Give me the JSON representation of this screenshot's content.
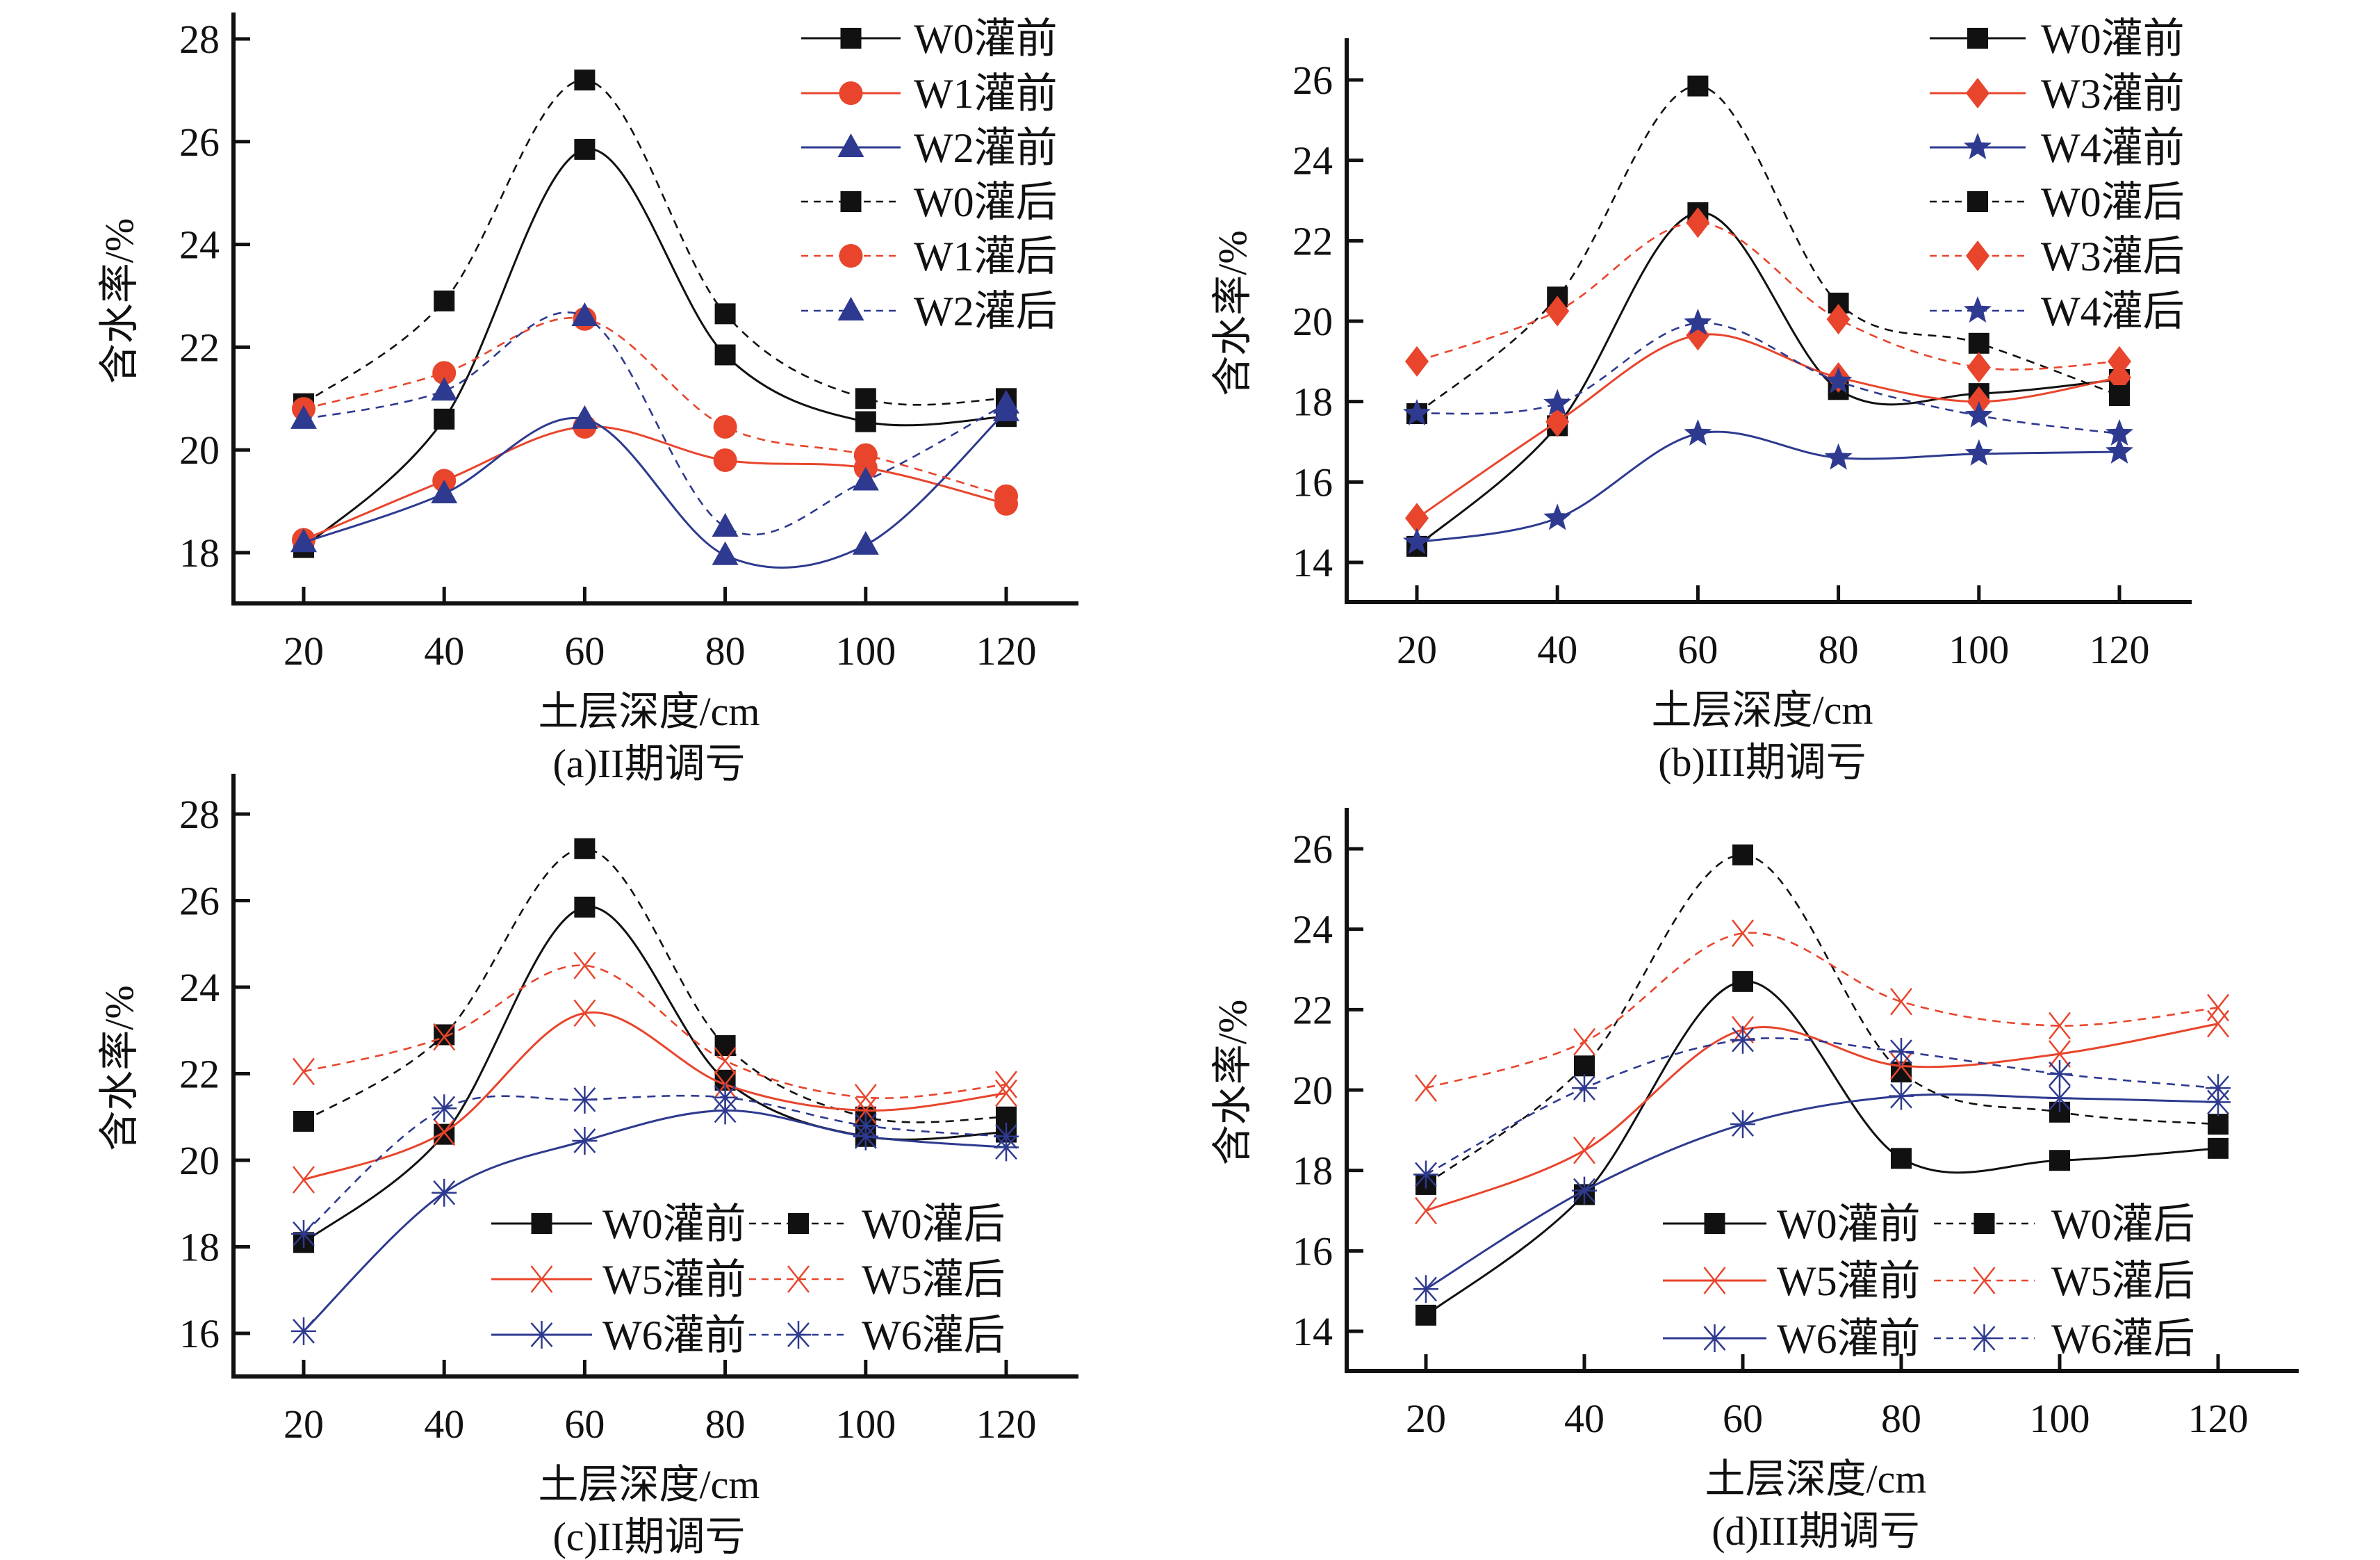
{
  "figure": {
    "colors": {
      "black": "#111111",
      "red": "#e8452c",
      "blue": "#2e3a8f"
    }
  },
  "chart_data": [
    {
      "id": "a",
      "type": "line",
      "caption": "(a)II期调亏",
      "xlabel": "土层深度/cm",
      "ylabel": "含水率/%",
      "x": [
        20,
        40,
        60,
        80,
        100,
        120
      ],
      "x_ticks": [
        "20",
        "40",
        "60",
        "80",
        "100",
        "120"
      ],
      "y_ticks": [
        "18",
        "20",
        "22",
        "24",
        "26",
        "28"
      ],
      "ylim": [
        17,
        28.5
      ],
      "legend_placement": "top-right",
      "series": [
        {
          "name": "W0灌前",
          "color": "black",
          "dash": "solid",
          "marker": "square",
          "values": [
            18.1,
            20.6,
            25.85,
            21.85,
            20.55,
            20.65
          ]
        },
        {
          "name": "W1灌前",
          "color": "red",
          "dash": "solid",
          "marker": "circle",
          "values": [
            18.25,
            19.4,
            20.45,
            19.8,
            19.65,
            18.95
          ]
        },
        {
          "name": "W2灌前",
          "color": "blue",
          "dash": "solid",
          "marker": "triangle",
          "values": [
            18.2,
            19.15,
            20.6,
            17.95,
            18.15,
            20.75
          ]
        },
        {
          "name": "W0灌后",
          "color": "black",
          "dash": "dashed",
          "marker": "square",
          "values": [
            20.9,
            22.9,
            27.2,
            22.65,
            21.0,
            21.0
          ]
        },
        {
          "name": "W1灌后",
          "color": "red",
          "dash": "dashed",
          "marker": "circle",
          "values": [
            20.8,
            21.5,
            22.55,
            20.45,
            19.9,
            19.1
          ]
        },
        {
          "name": "W2灌后",
          "color": "blue",
          "dash": "dashed",
          "marker": "triangle",
          "values": [
            20.6,
            21.15,
            22.6,
            18.5,
            19.4,
            20.9
          ]
        }
      ]
    },
    {
      "id": "b",
      "type": "line",
      "caption": "(b)III期调亏",
      "xlabel": "土层深度/cm",
      "ylabel": "含水率/%",
      "x": [
        20,
        40,
        60,
        80,
        100,
        120
      ],
      "x_ticks": [
        "20",
        "40",
        "60",
        "80",
        "100",
        "120"
      ],
      "y_ticks": [
        "14",
        "16",
        "18",
        "20",
        "22",
        "24",
        "26"
      ],
      "ylim": [
        13,
        27
      ],
      "legend_placement": "top-right",
      "series": [
        {
          "name": "W0灌前",
          "color": "black",
          "dash": "solid",
          "marker": "square",
          "values": [
            14.4,
            17.4,
            22.7,
            18.3,
            18.2,
            18.55
          ]
        },
        {
          "name": "W3灌前",
          "color": "red",
          "dash": "solid",
          "marker": "diamond",
          "values": [
            15.1,
            17.5,
            19.65,
            18.6,
            18.0,
            18.6
          ]
        },
        {
          "name": "W4灌前",
          "color": "blue",
          "dash": "solid",
          "marker": "star",
          "values": [
            14.5,
            15.1,
            17.2,
            16.6,
            16.7,
            16.75
          ]
        },
        {
          "name": "W0灌后",
          "color": "black",
          "dash": "dashed",
          "marker": "square",
          "values": [
            17.7,
            20.6,
            25.85,
            20.45,
            19.45,
            18.15
          ]
        },
        {
          "name": "W3灌后",
          "color": "red",
          "dash": "dashed",
          "marker": "diamond",
          "values": [
            19.0,
            20.25,
            22.45,
            20.05,
            18.85,
            19.0
          ]
        },
        {
          "name": "W4灌后",
          "color": "blue",
          "dash": "dashed",
          "marker": "star",
          "values": [
            17.7,
            17.95,
            19.95,
            18.5,
            17.65,
            17.2
          ]
        }
      ]
    },
    {
      "id": "c",
      "type": "line",
      "caption": "(c)II期调亏",
      "xlabel": "土层深度/cm",
      "ylabel": "含水率/%",
      "x": [
        20,
        40,
        60,
        80,
        100,
        120
      ],
      "x_ticks": [
        "20",
        "40",
        "60",
        "80",
        "100",
        "120"
      ],
      "y_ticks": [
        "16",
        "18",
        "20",
        "22",
        "24",
        "26",
        "28"
      ],
      "ylim": [
        15,
        28.9
      ],
      "legend_placement": "bottom-right",
      "series": [
        {
          "name": "W0灌前",
          "color": "black",
          "dash": "solid",
          "marker": "square",
          "values": [
            18.1,
            20.6,
            25.85,
            21.85,
            20.55,
            20.65
          ]
        },
        {
          "name": "W0灌后",
          "color": "black",
          "dash": "dashed",
          "marker": "square",
          "values": [
            20.9,
            22.9,
            27.2,
            22.65,
            21.0,
            21.0
          ]
        },
        {
          "name": "W5灌前",
          "color": "red",
          "dash": "solid",
          "marker": "x",
          "values": [
            19.55,
            20.65,
            23.4,
            21.75,
            21.15,
            21.55
          ]
        },
        {
          "name": "W5灌后",
          "color": "red",
          "dash": "dashed",
          "marker": "x",
          "values": [
            22.05,
            22.85,
            24.5,
            22.3,
            21.45,
            21.75
          ]
        },
        {
          "name": "W6灌前",
          "color": "blue",
          "dash": "solid",
          "marker": "asterisk",
          "values": [
            16.05,
            19.25,
            20.45,
            21.15,
            20.55,
            20.3
          ]
        },
        {
          "name": "W6灌后",
          "color": "blue",
          "dash": "dashed",
          "marker": "asterisk",
          "values": [
            18.3,
            21.2,
            21.4,
            21.45,
            20.8,
            20.55
          ]
        }
      ]
    },
    {
      "id": "d",
      "type": "line",
      "caption": "(d)III期调亏",
      "xlabel": "土层深度/cm",
      "ylabel": "含水率/%",
      "x": [
        20,
        40,
        60,
        80,
        100,
        120
      ],
      "x_ticks": [
        "20",
        "40",
        "60",
        "80",
        "100",
        "120"
      ],
      "y_ticks": [
        "14",
        "16",
        "18",
        "20",
        "22",
        "24",
        "26"
      ],
      "ylim": [
        13,
        27
      ],
      "legend_placement": "bottom-right",
      "series": [
        {
          "name": "W0灌前",
          "color": "black",
          "dash": "solid",
          "marker": "square",
          "values": [
            14.4,
            17.4,
            22.7,
            18.3,
            18.25,
            18.55
          ]
        },
        {
          "name": "W0灌后",
          "color": "black",
          "dash": "dashed",
          "marker": "square",
          "values": [
            17.65,
            20.6,
            25.85,
            20.45,
            19.45,
            19.15
          ]
        },
        {
          "name": "W5灌前",
          "color": "red",
          "dash": "solid",
          "marker": "x",
          "values": [
            17.0,
            18.5,
            21.5,
            20.6,
            20.9,
            21.65
          ]
        },
        {
          "name": "W5灌后",
          "color": "red",
          "dash": "dashed",
          "marker": "x",
          "values": [
            20.05,
            21.2,
            23.9,
            22.2,
            21.6,
            22.05
          ]
        },
        {
          "name": "W6灌前",
          "color": "blue",
          "dash": "solid",
          "marker": "asterisk",
          "values": [
            15.05,
            17.5,
            19.15,
            19.85,
            19.8,
            19.7
          ]
        },
        {
          "name": "W6灌后",
          "color": "blue",
          "dash": "dashed",
          "marker": "asterisk",
          "values": [
            17.9,
            20.05,
            21.25,
            20.95,
            20.4,
            20.05
          ]
        }
      ]
    }
  ]
}
